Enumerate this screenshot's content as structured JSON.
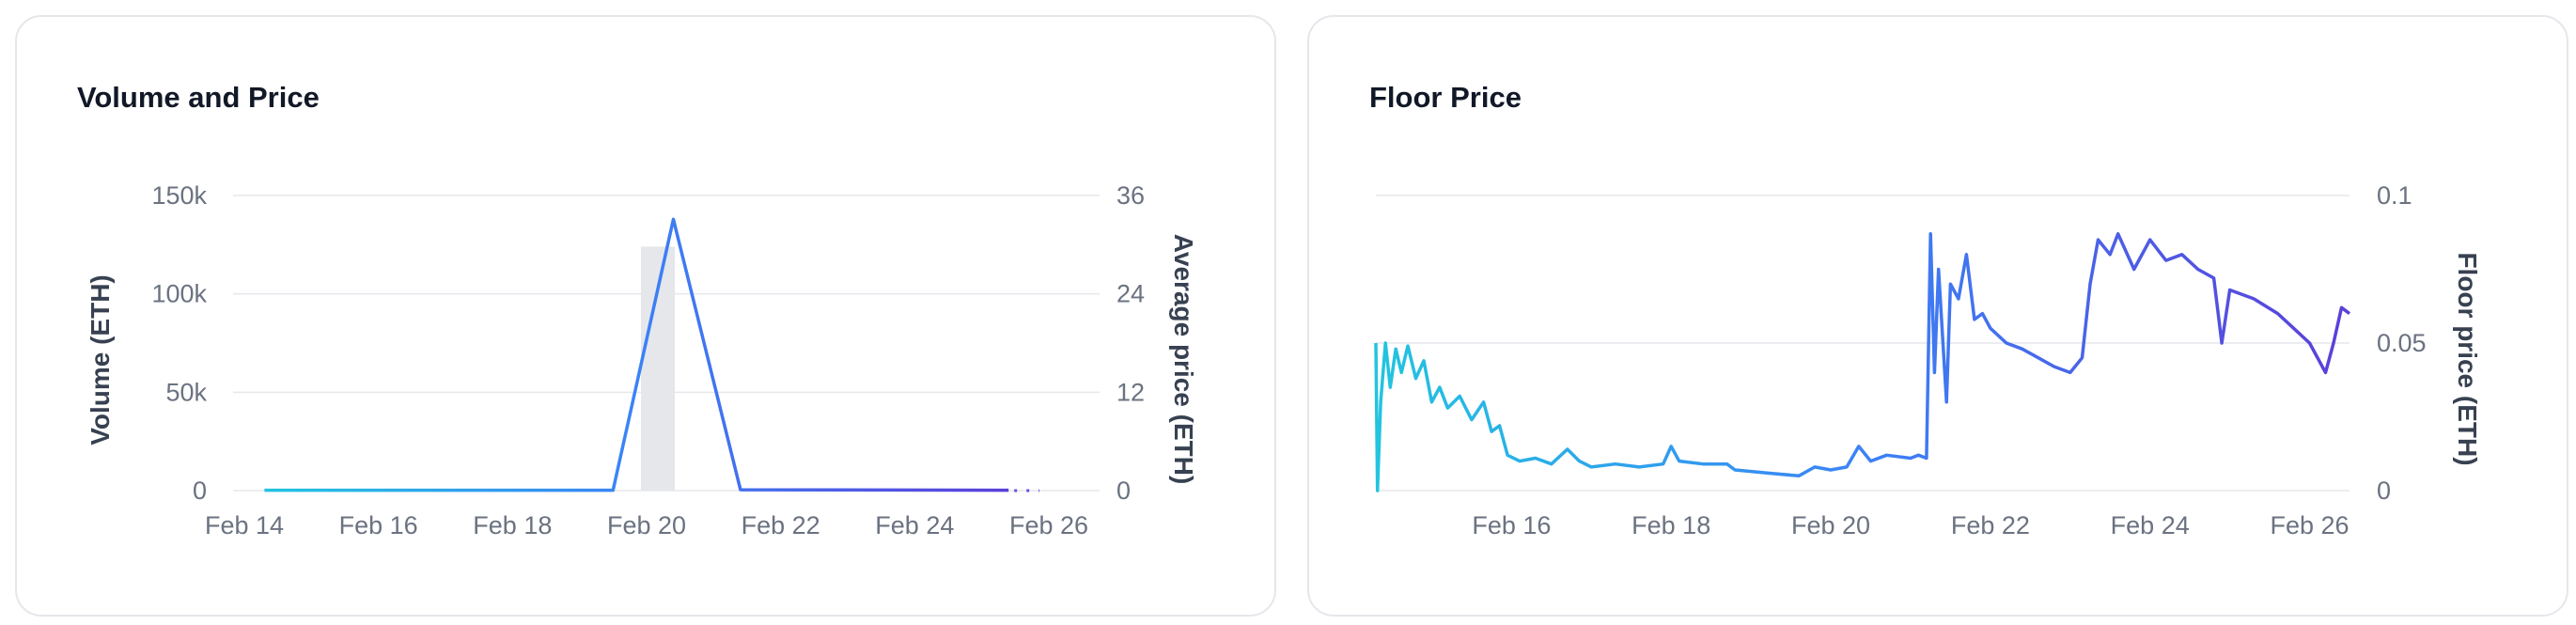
{
  "chart_data": [
    {
      "type": "bar+line",
      "title": "Volume and Price",
      "ylabel": "Volume (ETH)",
      "y2label": "Average price (ETH)",
      "ylim": [
        0,
        150000
      ],
      "y2lim": [
        0,
        36
      ],
      "yticks": [
        "0",
        "50k",
        "100k",
        "150k"
      ],
      "y2ticks": [
        "0",
        "12",
        "24",
        "36"
      ],
      "xticks": [
        "Feb 14",
        "Feb 16",
        "Feb 18",
        "Feb 20",
        "Feb 22",
        "Feb 24",
        "Feb 26"
      ],
      "x_days": [
        14,
        26
      ],
      "grid": true,
      "series": [
        {
          "kind": "bar",
          "values": [
            {
              "day": 20,
              "volume": 124000
            }
          ]
        },
        {
          "kind": "line",
          "points": [
            {
              "day": 14.3,
              "price": 0.05
            },
            {
              "day": 19.5,
              "price": 0.05
            },
            {
              "day": 20.4,
              "price": 33.1
            },
            {
              "day": 21.4,
              "price": 0.1
            },
            {
              "day": 25.4,
              "price": 0.05
            }
          ]
        }
      ],
      "gradient_colors": [
        "#22c4e0",
        "#3b82f6",
        "#5b3fd9"
      ]
    },
    {
      "type": "line",
      "title": "Floor Price",
      "y2label": "Floor price (ETH)",
      "y2lim": [
        0,
        0.1
      ],
      "y2ticks": [
        "0",
        "0.05",
        "0.1"
      ],
      "xticks": [
        "Feb 16",
        "Feb 18",
        "Feb 20",
        "Feb 22",
        "Feb 24",
        "Feb 26"
      ],
      "x_days": [
        14.3,
        26.5
      ],
      "grid": true,
      "series": [
        {
          "points": [
            [
              14.3,
              0.05
            ],
            [
              14.32,
              0.0
            ],
            [
              14.36,
              0.03
            ],
            [
              14.42,
              0.05
            ],
            [
              14.48,
              0.035
            ],
            [
              14.55,
              0.048
            ],
            [
              14.62,
              0.04
            ],
            [
              14.7,
              0.049
            ],
            [
              14.8,
              0.038
            ],
            [
              14.9,
              0.044
            ],
            [
              15.0,
              0.03
            ],
            [
              15.1,
              0.035
            ],
            [
              15.2,
              0.028
            ],
            [
              15.35,
              0.032
            ],
            [
              15.5,
              0.024
            ],
            [
              15.65,
              0.03
            ],
            [
              15.75,
              0.02
            ],
            [
              15.85,
              0.022
            ],
            [
              15.95,
              0.012
            ],
            [
              16.1,
              0.01
            ],
            [
              16.3,
              0.011
            ],
            [
              16.5,
              0.009
            ],
            [
              16.7,
              0.014
            ],
            [
              16.85,
              0.01
            ],
            [
              17.0,
              0.008
            ],
            [
              17.3,
              0.009
            ],
            [
              17.6,
              0.008
            ],
            [
              17.9,
              0.009
            ],
            [
              18.0,
              0.015
            ],
            [
              18.1,
              0.01
            ],
            [
              18.4,
              0.009
            ],
            [
              18.7,
              0.009
            ],
            [
              18.8,
              0.007
            ],
            [
              19.2,
              0.006
            ],
            [
              19.6,
              0.005
            ],
            [
              19.8,
              0.008
            ],
            [
              20.0,
              0.007
            ],
            [
              20.2,
              0.008
            ],
            [
              20.35,
              0.015
            ],
            [
              20.5,
              0.01
            ],
            [
              20.7,
              0.012
            ],
            [
              21.0,
              0.011
            ],
            [
              21.1,
              0.012
            ],
            [
              21.2,
              0.011
            ],
            [
              21.25,
              0.087
            ],
            [
              21.3,
              0.04
            ],
            [
              21.35,
              0.075
            ],
            [
              21.45,
              0.03
            ],
            [
              21.5,
              0.07
            ],
            [
              21.6,
              0.065
            ],
            [
              21.7,
              0.08
            ],
            [
              21.8,
              0.058
            ],
            [
              21.9,
              0.06
            ],
            [
              22.0,
              0.055
            ],
            [
              22.2,
              0.05
            ],
            [
              22.4,
              0.048
            ],
            [
              22.6,
              0.045
            ],
            [
              22.8,
              0.042
            ],
            [
              23.0,
              0.04
            ],
            [
              23.15,
              0.045
            ],
            [
              23.25,
              0.07
            ],
            [
              23.35,
              0.085
            ],
            [
              23.5,
              0.08
            ],
            [
              23.6,
              0.087
            ],
            [
              23.8,
              0.075
            ],
            [
              24.0,
              0.085
            ],
            [
              24.2,
              0.078
            ],
            [
              24.4,
              0.08
            ],
            [
              24.6,
              0.075
            ],
            [
              24.8,
              0.072
            ],
            [
              24.9,
              0.05
            ],
            [
              25.0,
              0.068
            ],
            [
              25.3,
              0.065
            ],
            [
              25.6,
              0.06
            ],
            [
              25.8,
              0.055
            ],
            [
              26.0,
              0.05
            ],
            [
              26.2,
              0.04
            ],
            [
              26.3,
              0.05
            ],
            [
              26.4,
              0.062
            ],
            [
              26.5,
              0.06
            ]
          ]
        }
      ],
      "gradient_colors": [
        "#22c4e0",
        "#3b82f6",
        "#5b3fd9"
      ]
    }
  ]
}
